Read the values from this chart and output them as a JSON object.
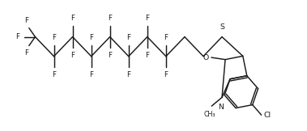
{
  "background_color": "#ffffff",
  "line_color": "#1a1a1a",
  "line_width": 1.05,
  "font_size": 6.2,
  "figsize": [
    3.79,
    1.62
  ],
  "dpi": 100,
  "xlim": [
    -0.5,
    10.8
  ],
  "ylim": [
    0.2,
    4.8
  ]
}
